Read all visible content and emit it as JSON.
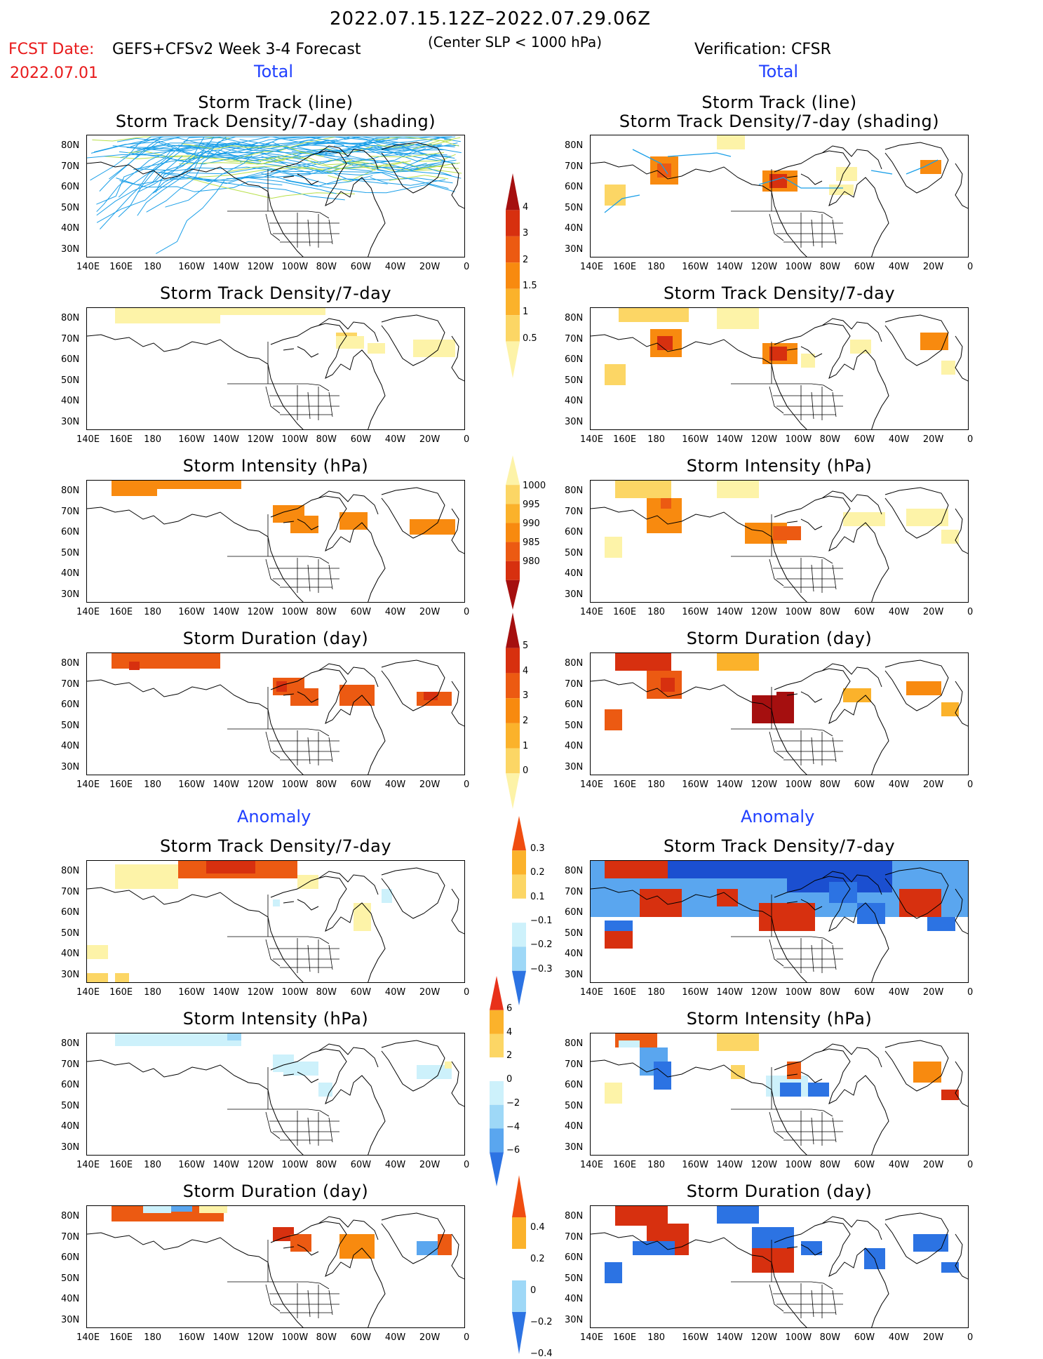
{
  "header": {
    "date_range": "2022.07.15.12Z–2022.07.29.06Z",
    "fcst_label": "FCST Date:",
    "fcst_date": "2022.07.01",
    "model": "GEFS+CFSv2 Week 3-4 Forecast",
    "criterion": "(Center SLP < 1000 hPa)",
    "verification": "Verification: CFSR"
  },
  "sections": {
    "total": "Total",
    "anomaly": "Anomaly"
  },
  "panel_titles": {
    "track_line": "Storm Track (line)",
    "track_density_shading": "Storm Track Density/7-day (shading)",
    "track_density": "Storm Track Density/7-day",
    "intensity": "Storm Intensity (hPa)",
    "duration": "Storm Duration (day)"
  },
  "axes": {
    "lat_labels": [
      "80N",
      "70N",
      "60N",
      "50N",
      "40N",
      "30N"
    ],
    "lon_labels": [
      "140E",
      "160E",
      "180",
      "160W",
      "140W",
      "120W",
      "100W",
      "80W",
      "60W",
      "40W",
      "20W",
      "0"
    ]
  },
  "colorbars": {
    "density_total": [
      "4",
      "3",
      "2",
      "1.5",
      "1",
      "0.5"
    ],
    "intensity_total": [
      "1000",
      "995",
      "990",
      "985",
      "980"
    ],
    "duration_total": [
      "5",
      "4",
      "3",
      "2",
      "1",
      "0"
    ],
    "density_anom": [
      "0.3",
      "0.2",
      "0.1",
      "−0.1",
      "−0.2",
      "−0.3"
    ],
    "intensity_anom": [
      "6",
      "4",
      "2",
      "0",
      "−2",
      "−4",
      "−6"
    ],
    "duration_anom": [
      "0.4",
      "0.2",
      "0",
      "−0.2",
      "−0.4"
    ]
  },
  "palette": {
    "warm": [
      "#fdf3a8",
      "#fcd665",
      "#fbb22b",
      "#f88a0f",
      "#ec5a12",
      "#d7300f",
      "#a50f0f"
    ],
    "cool": [
      "#cdf1fb",
      "#9ed8f7",
      "#5aa6ef",
      "#2c73e3",
      "#1b4fd0"
    ],
    "track_line": "#1a9fe8",
    "section_text": "#1f3fff",
    "fcst_text": "#e8191a"
  }
}
